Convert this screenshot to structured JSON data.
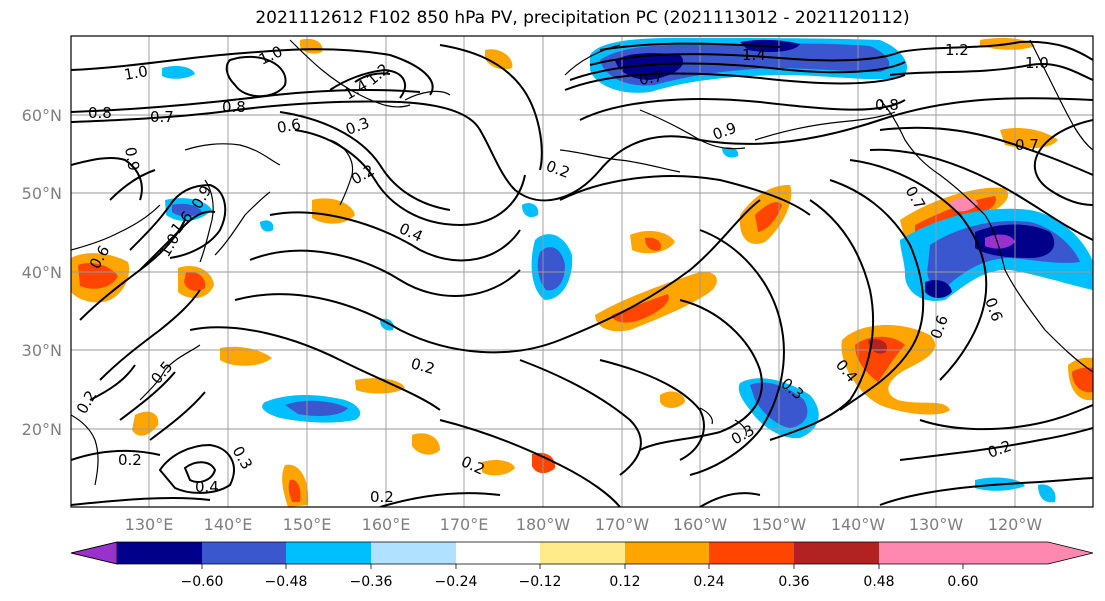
{
  "title": "2021112612 F102 850 hPa PV, precipitation PC (2021113012 - 2021120112)",
  "map": {
    "lat_labels": [
      "60°N",
      "50°N",
      "40°N",
      "30°N",
      "20°N"
    ],
    "lon_labels": [
      "130°E",
      "140°E",
      "150°E",
      "160°E",
      "170°E",
      "180°W",
      "170°W",
      "160°W",
      "150°W",
      "140°W",
      "130°W",
      "120°W"
    ],
    "contour_labels": [
      "1.0",
      "0.8",
      "1.0",
      "0.7",
      "0.8",
      "0.6",
      "1.4",
      "1.2",
      "0.9",
      "0.3",
      "0.2",
      "0.4",
      "0.2",
      "0.2",
      "0.7",
      "1.4",
      "1.2",
      "1.0",
      "0.9",
      "0.8",
      "0.7",
      "0.6",
      "0.6",
      "0.3",
      "0.4",
      "0.3",
      "0.2",
      "0.5",
      "0.2",
      "0.2",
      "0.3",
      "0.4",
      "0.2",
      "0.2",
      "0.6",
      "1.0",
      "1.6",
      "0.9",
      "0.7"
    ]
  },
  "colorbar": {
    "ticks": [
      "−0.60",
      "−0.48",
      "−0.36",
      "−0.24",
      "−0.12",
      "0.12",
      "0.24",
      "0.36",
      "0.48",
      "0.60"
    ],
    "colors": [
      "#9932cc",
      "#00008b",
      "#3a57cf",
      "#00bfff",
      "#b0e2ff",
      "#ffffff",
      "#ffeb8a",
      "#ffa500",
      "#ff4500",
      "#b22222",
      "#ff88b0"
    ]
  }
}
